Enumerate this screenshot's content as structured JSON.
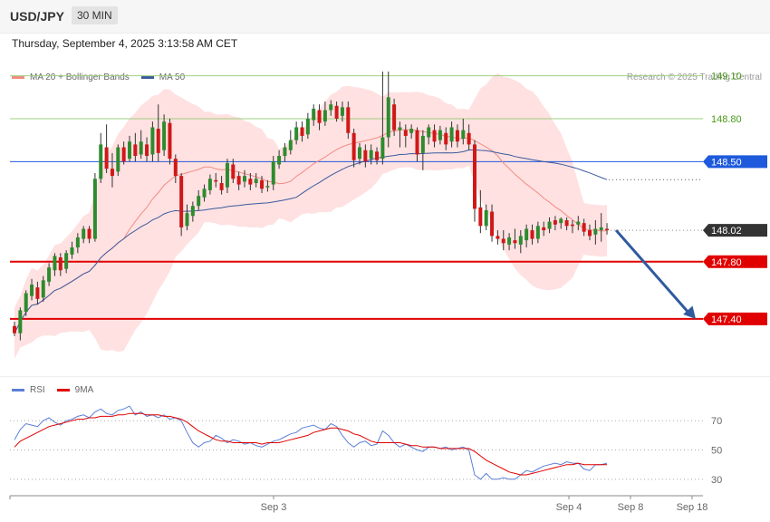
{
  "header": {
    "symbol": "USD/JPY",
    "timeframe": "30 MIN"
  },
  "datetime": "Thursday, September 4, 2025 3:13:58 AM CET",
  "legend": {
    "ma20": {
      "label": "MA 20 + Bollinger Bands",
      "color": "#f28b82"
    },
    "ma50": {
      "label": "MA 50",
      "color": "#3a5a9e"
    }
  },
  "credit": "Research © 2025 Trading Central",
  "rsi_legend": {
    "rsi": {
      "label": "RSI",
      "color": "#5b7fd6"
    },
    "ma9": {
      "label": "9MA",
      "color": "#e00000"
    }
  },
  "chart_data": [
    {
      "type": "candlestick",
      "ylim": [
        147.0,
        149.25
      ],
      "x_ticks": [
        "Sep 3",
        "Sep 4",
        "Sep 8",
        "Sep 18"
      ],
      "levels": [
        {
          "value": 149.1,
          "label": "149.10",
          "color": "#4a9a1a",
          "style": "thin"
        },
        {
          "value": 148.8,
          "label": "148.80",
          "color": "#4a9a1a",
          "style": "thin"
        },
        {
          "value": 148.5,
          "label": "148.50",
          "color": "#1e5adc",
          "style": "tag"
        },
        {
          "value": 148.02,
          "label": "148.02",
          "color": "#333333",
          "style": "current"
        },
        {
          "value": 147.8,
          "label": "147.80",
          "color": "#e00000",
          "style": "thick"
        },
        {
          "value": 147.4,
          "label": "147.40",
          "color": "#e00000",
          "style": "thick"
        }
      ],
      "candles": [
        [
          147.35,
          147.3,
          147.28,
          147.38
        ],
        [
          147.3,
          147.46,
          147.25,
          147.48
        ],
        [
          147.45,
          147.58,
          147.42,
          147.6
        ],
        [
          147.56,
          147.64,
          147.53,
          147.68
        ],
        [
          147.62,
          147.54,
          147.5,
          147.66
        ],
        [
          147.55,
          147.67,
          147.52,
          147.7
        ],
        [
          147.66,
          147.76,
          147.63,
          147.79
        ],
        [
          147.74,
          147.84,
          147.7,
          147.86
        ],
        [
          147.83,
          147.74,
          147.7,
          147.86
        ],
        [
          147.75,
          147.86,
          147.72,
          147.88
        ],
        [
          147.85,
          147.9,
          147.82,
          147.94
        ],
        [
          147.9,
          147.97,
          147.86,
          148.0
        ],
        [
          147.96,
          148.03,
          147.93,
          148.05
        ],
        [
          148.03,
          147.96,
          147.93,
          148.05
        ],
        [
          147.96,
          148.38,
          147.94,
          148.42
        ],
        [
          148.38,
          148.62,
          148.35,
          148.7
        ],
        [
          148.6,
          148.45,
          148.42,
          148.76
        ],
        [
          148.45,
          148.4,
          148.32,
          148.56
        ],
        [
          148.43,
          148.6,
          148.4,
          148.62
        ],
        [
          148.6,
          148.5,
          148.48,
          148.64
        ],
        [
          148.52,
          148.64,
          148.5,
          148.68
        ],
        [
          148.62,
          148.54,
          148.5,
          148.7
        ],
        [
          148.55,
          148.64,
          148.52,
          148.72
        ],
        [
          148.62,
          148.54,
          148.5,
          148.67
        ],
        [
          148.55,
          148.74,
          148.5,
          148.78
        ],
        [
          148.73,
          148.56,
          148.5,
          148.9
        ],
        [
          148.58,
          148.78,
          148.54,
          148.83
        ],
        [
          148.77,
          148.52,
          148.48,
          148.8
        ],
        [
          148.52,
          148.4,
          148.35,
          148.55
        ],
        [
          148.4,
          148.04,
          147.98,
          148.42
        ],
        [
          148.05,
          148.14,
          148.02,
          148.2
        ],
        [
          148.12,
          148.19,
          148.08,
          148.22
        ],
        [
          148.19,
          148.26,
          148.16,
          148.3
        ],
        [
          148.25,
          148.31,
          148.22,
          148.34
        ],
        [
          148.3,
          148.38,
          148.27,
          148.41
        ],
        [
          148.37,
          148.36,
          148.32,
          148.42
        ],
        [
          148.35,
          148.3,
          148.27,
          148.4
        ],
        [
          148.32,
          148.49,
          148.28,
          148.52
        ],
        [
          148.48,
          148.38,
          148.35,
          148.52
        ],
        [
          148.4,
          148.34,
          148.3,
          148.43
        ],
        [
          148.36,
          148.4,
          148.32,
          148.44
        ],
        [
          148.38,
          148.34,
          148.3,
          148.42
        ],
        [
          148.35,
          148.38,
          148.32,
          148.42
        ],
        [
          148.37,
          148.31,
          148.28,
          148.4
        ],
        [
          148.32,
          148.33,
          148.29,
          148.37
        ],
        [
          148.34,
          148.5,
          148.3,
          148.54
        ],
        [
          148.48,
          148.54,
          148.45,
          148.58
        ],
        [
          148.54,
          148.6,
          148.5,
          148.63
        ],
        [
          148.58,
          148.65,
          148.55,
          148.72
        ],
        [
          148.65,
          148.74,
          148.62,
          148.78
        ],
        [
          148.74,
          148.68,
          148.64,
          148.78
        ],
        [
          148.69,
          148.8,
          148.66,
          148.84
        ],
        [
          148.79,
          148.87,
          148.75,
          148.9
        ],
        [
          148.86,
          148.77,
          148.72,
          148.9
        ],
        [
          148.78,
          148.86,
          148.75,
          148.92
        ],
        [
          148.86,
          148.9,
          148.82,
          148.93
        ],
        [
          148.89,
          148.8,
          148.78,
          148.92
        ],
        [
          148.82,
          148.88,
          148.78,
          148.92
        ],
        [
          148.88,
          148.7,
          148.66,
          148.92
        ],
        [
          148.7,
          148.51,
          148.46,
          148.73
        ],
        [
          148.52,
          148.6,
          148.48,
          148.63
        ],
        [
          148.58,
          148.5,
          148.46,
          148.62
        ],
        [
          148.52,
          148.58,
          148.48,
          148.62
        ],
        [
          148.57,
          148.51,
          148.48,
          148.6
        ],
        [
          148.52,
          148.67,
          148.48,
          149.13
        ],
        [
          148.67,
          148.95,
          148.6,
          149.13
        ],
        [
          148.9,
          148.72,
          148.68,
          148.94
        ],
        [
          148.72,
          148.74,
          148.6,
          148.78
        ],
        [
          148.72,
          148.68,
          148.6,
          148.76
        ],
        [
          148.7,
          148.73,
          148.66,
          148.76
        ],
        [
          148.72,
          148.55,
          148.5,
          148.74
        ],
        [
          148.56,
          148.68,
          148.44,
          148.72
        ],
        [
          148.67,
          148.74,
          148.62,
          148.76
        ],
        [
          148.72,
          148.64,
          148.6,
          148.76
        ],
        [
          148.65,
          148.72,
          148.62,
          148.75
        ],
        [
          148.7,
          148.62,
          148.58,
          148.74
        ],
        [
          148.64,
          148.74,
          148.6,
          148.78
        ],
        [
          148.72,
          148.64,
          148.6,
          148.76
        ],
        [
          148.66,
          148.72,
          148.62,
          148.8
        ],
        [
          148.7,
          148.62,
          148.58,
          148.76
        ],
        [
          148.62,
          148.17,
          148.08,
          148.65
        ],
        [
          148.18,
          148.05,
          148.0,
          148.3
        ],
        [
          148.05,
          148.16,
          148.02,
          148.2
        ],
        [
          148.15,
          147.98,
          147.94,
          148.2
        ],
        [
          147.98,
          147.96,
          147.92,
          148.02
        ],
        [
          147.96,
          147.93,
          147.88,
          148.02
        ],
        [
          147.92,
          147.97,
          147.88,
          148.0
        ],
        [
          147.95,
          147.93,
          147.89,
          148.03
        ],
        [
          147.92,
          147.98,
          147.86,
          148.02
        ],
        [
          147.95,
          148.03,
          147.9,
          148.06
        ],
        [
          148.02,
          147.96,
          147.92,
          148.06
        ],
        [
          147.96,
          148.05,
          147.93,
          148.08
        ],
        [
          148.04,
          148.02,
          147.98,
          148.08
        ],
        [
          148.03,
          148.08,
          148.0,
          148.11
        ],
        [
          148.09,
          148.06,
          148.02,
          148.12
        ],
        [
          148.07,
          148.1,
          148.03,
          148.11
        ],
        [
          148.09,
          148.05,
          148.02,
          148.11
        ],
        [
          148.06,
          148.05,
          148.0,
          148.09
        ],
        [
          148.06,
          148.08,
          148.02,
          148.12
        ],
        [
          148.07,
          148.01,
          147.98,
          148.1
        ],
        [
          148.02,
          147.98,
          147.95,
          148.06
        ],
        [
          147.99,
          148.03,
          147.92,
          148.09
        ],
        [
          148.02,
          148.04,
          147.94,
          148.14
        ],
        [
          148.03,
          148.02,
          147.99,
          148.07
        ]
      ],
      "forecast_arrow": {
        "from": 148.02,
        "to": 147.4
      }
    },
    {
      "type": "line",
      "title": "RSI",
      "ylim": [
        20,
        85
      ],
      "y_ticks": [
        70,
        50,
        30
      ],
      "series": [
        {
          "name": "RSI",
          "color": "#5b7fd6",
          "values": [
            57,
            64,
            68,
            67,
            66,
            70,
            72,
            69,
            67,
            70,
            71,
            73,
            74,
            72,
            76,
            78,
            75,
            74,
            77,
            78,
            80,
            74,
            76,
            73,
            74,
            72,
            74,
            71,
            72,
            70,
            62,
            55,
            52,
            55,
            56,
            60,
            58,
            55,
            57,
            56,
            54,
            55,
            53,
            52,
            54,
            56,
            57,
            59,
            61,
            62,
            65,
            66,
            67,
            65,
            64,
            68,
            66,
            60,
            55,
            52,
            55,
            56,
            53,
            54,
            63,
            60,
            55,
            52,
            54,
            52,
            50,
            49,
            52,
            52,
            51,
            52,
            50,
            51,
            52,
            50,
            33,
            30,
            34,
            30,
            30,
            31,
            30,
            30,
            33,
            36,
            35,
            37,
            39,
            40,
            41,
            40,
            42,
            41,
            41,
            37,
            36,
            40,
            40,
            41
          ]
        },
        {
          "name": "9MA",
          "color": "#e00000",
          "values": [
            52,
            56,
            58,
            60,
            62,
            64,
            66,
            67,
            68,
            69,
            70,
            71,
            71,
            72,
            72,
            73,
            73,
            73,
            74,
            74,
            75,
            75,
            75,
            74,
            74,
            74,
            73,
            73,
            72,
            71,
            69,
            66,
            63,
            61,
            59,
            57,
            56,
            56,
            55,
            55,
            55,
            55,
            55,
            54,
            55,
            55,
            55,
            56,
            57,
            58,
            59,
            60,
            62,
            63,
            64,
            65,
            65,
            64,
            63,
            61,
            60,
            58,
            56,
            55,
            55,
            55,
            55,
            55,
            54,
            53,
            53,
            52,
            52,
            52,
            51,
            51,
            51,
            51,
            51,
            51,
            49,
            46,
            43,
            41,
            39,
            37,
            35,
            34,
            33,
            33,
            34,
            35,
            36,
            37,
            38,
            39,
            40,
            40,
            41,
            40,
            40,
            40,
            40,
            40
          ]
        }
      ]
    }
  ]
}
